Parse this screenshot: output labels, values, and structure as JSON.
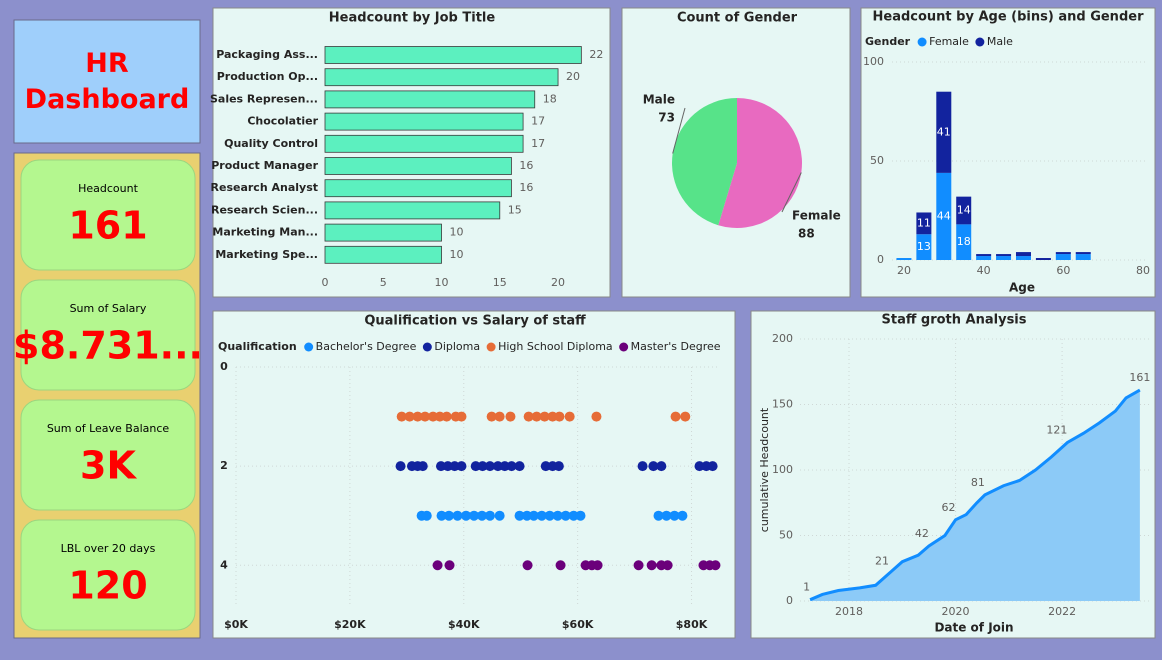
{
  "header": {
    "title": "HR Dashboard"
  },
  "kpis": [
    {
      "label": "Headcount",
      "value": 161
    },
    {
      "label": "Sum of Salary",
      "value": "$8.731..."
    },
    {
      "label": "Sum of Leave Balance",
      "value": "3K"
    },
    {
      "label": "LBL over 20 days",
      "value": 120
    }
  ],
  "chart_data": [
    {
      "type": "bar",
      "orientation": "horizontal",
      "title": "Headcount by Job Title",
      "categories": [
        "Packaging Ass...",
        "Production Op...",
        "Sales Represen...",
        "Chocolatier",
        "Quality Control",
        "Product Manager",
        "Research Analyst",
        "Research Scien...",
        "Marketing Man...",
        "Marketing Spe..."
      ],
      "values": [
        22,
        20,
        18,
        17,
        17,
        16,
        16,
        15,
        10,
        10
      ],
      "color": "#5cf0bf",
      "xlim": [
        0,
        23
      ],
      "xticks": [
        0,
        5,
        10,
        15,
        20
      ],
      "grid": false,
      "data_labels": true
    },
    {
      "type": "pie",
      "title": "Count of Gender",
      "categories": [
        "Female",
        "Male"
      ],
      "values": [
        88,
        73
      ],
      "colors": [
        "#e86ac0",
        "#57e389"
      ]
    },
    {
      "type": "stacked-bar",
      "title": "Headcount by Age (bins) and Gender",
      "legend_title": "Gender",
      "x_label": "Age",
      "x": [
        20,
        25,
        30,
        35,
        40,
        45,
        50,
        55,
        60,
        65
      ],
      "series": [
        {
          "name": "Female",
          "color": "#118dff",
          "values": [
            1,
            13,
            44,
            18,
            2,
            2,
            2,
            0,
            3,
            3
          ]
        },
        {
          "name": "Male",
          "color": "#12239e",
          "values": [
            0,
            11,
            41,
            14,
            1,
            1,
            2,
            1,
            1,
            1
          ]
        }
      ],
      "xlim": [
        17,
        81
      ],
      "xticks": [
        20,
        40,
        60,
        80
      ],
      "ylim": [
        0,
        100
      ],
      "yticks": [
        0,
        50,
        100
      ],
      "grid": true
    },
    {
      "type": "scatter",
      "title": "Qualification vs Salary of staff",
      "legend_title": "Qualification",
      "y_inverted": true,
      "series": [
        {
          "name": "Bachelor's Degree",
          "color": "#118dff",
          "x": [
            32600,
            33500,
            36100,
            37400,
            38900,
            40400,
            41800,
            43200,
            44600,
            46300,
            49800,
            51100,
            52300,
            53700,
            55100,
            56500,
            57900,
            59300,
            60500,
            74200,
            75600,
            77000,
            78400
          ],
          "values": [
            3,
            3,
            3,
            3,
            3,
            3,
            3,
            3,
            3,
            3,
            3,
            3,
            3,
            3,
            3,
            3,
            3,
            3,
            3,
            3,
            3,
            3,
            3
          ]
        },
        {
          "name": "Diploma",
          "color": "#12239e",
          "x": [
            28900,
            30900,
            31900,
            32800,
            36000,
            37200,
            38400,
            39600,
            42100,
            43300,
            44600,
            46000,
            47200,
            48400,
            49800,
            54400,
            55600,
            56700,
            71400,
            73300,
            74700,
            81400,
            82600,
            83700
          ],
          "values": [
            2,
            2,
            2,
            2,
            2,
            2,
            2,
            2,
            2,
            2,
            2,
            2,
            2,
            2,
            2,
            2,
            2,
            2,
            2,
            2,
            2,
            2,
            2,
            2
          ]
        },
        {
          "name": "High School Diploma",
          "color": "#e66c37",
          "x": [
            29100,
            30500,
            31900,
            33200,
            34600,
            35800,
            37000,
            38600,
            39600,
            44900,
            46300,
            48200,
            51400,
            52800,
            54200,
            55600,
            56800,
            58600,
            63300,
            77200,
            78900
          ],
          "values": [
            1,
            1,
            1,
            1,
            1,
            1,
            1,
            1,
            1,
            1,
            1,
            1,
            1,
            1,
            1,
            1,
            1,
            1,
            1,
            1,
            1
          ]
        },
        {
          "name": "Master's Degree",
          "color": "#6b007b",
          "x": [
            35400,
            37500,
            51200,
            57000,
            61400,
            62500,
            63500,
            70700,
            73000,
            74700,
            75800,
            82100,
            83200,
            84200
          ],
          "values": [
            4,
            4,
            4,
            4,
            4,
            4,
            4,
            4,
            4,
            4,
            4,
            4,
            4,
            4
          ]
        }
      ],
      "xlim": [
        0,
        85000
      ],
      "xticks": [
        {
          "value": 0,
          "label": "$0K"
        },
        {
          "value": 20000,
          "label": "$20K"
        },
        {
          "value": 40000,
          "label": "$40K"
        },
        {
          "value": 60000,
          "label": "$60K"
        },
        {
          "value": 80000,
          "label": "$80K"
        }
      ],
      "ylim": [
        0,
        4.6
      ],
      "yticks": [
        0,
        2,
        4
      ],
      "grid": true
    },
    {
      "type": "area",
      "title": "Staff groth Analysis",
      "x_label": "Date of Join",
      "y_label": "cumulative Headcount",
      "x": [
        2017.27,
        2017.5,
        2017.8,
        2018.2,
        2018.5,
        2018.75,
        2019.0,
        2019.3,
        2019.5,
        2019.8,
        2020.0,
        2020.2,
        2020.4,
        2020.55,
        2020.9,
        2021.2,
        2021.5,
        2021.8,
        2022.1,
        2022.4,
        2022.7,
        2023.0,
        2023.2,
        2023.46
      ],
      "values": [
        1,
        5,
        8,
        10,
        12,
        21,
        30,
        35,
        42,
        50,
        62,
        66,
        75,
        81,
        88,
        92,
        100,
        110,
        121,
        128,
        136,
        145,
        155,
        161
      ],
      "value_labels": [
        "1",
        null,
        null,
        null,
        null,
        "21",
        null,
        null,
        "42",
        null,
        "62",
        null,
        null,
        "81",
        null,
        null,
        null,
        null,
        "121",
        null,
        null,
        null,
        null,
        "161"
      ],
      "color": "#118dff",
      "fill": "#8ccaf7",
      "xlim": [
        2017.08,
        2023.65
      ],
      "xticks": [
        2018,
        2020,
        2022
      ],
      "ylim": [
        0,
        200
      ],
      "yticks": [
        0,
        50,
        100,
        150,
        200
      ],
      "grid": true
    }
  ]
}
